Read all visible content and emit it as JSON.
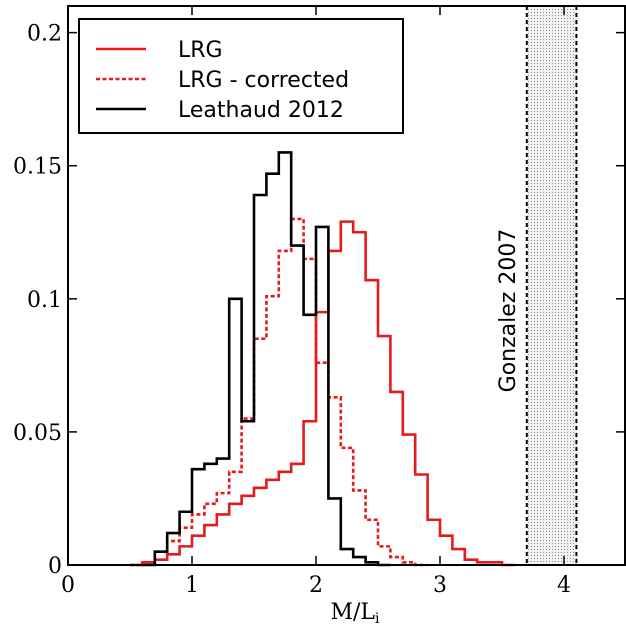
{
  "chart_data": {
    "type": "histogram",
    "xlabel": "M/L",
    "xlabel_sub": "i",
    "ylabel": "",
    "xlim": [
      0,
      4.5
    ],
    "ylim": [
      0,
      0.21
    ],
    "x_ticks": [
      {
        "v": 0,
        "label": "0"
      },
      {
        "v": 1,
        "label": "1"
      },
      {
        "v": 2,
        "label": "2"
      },
      {
        "v": 3,
        "label": "3"
      },
      {
        "v": 4,
        "label": "4"
      }
    ],
    "y_ticks": [
      {
        "v": 0,
        "label": "0"
      },
      {
        "v": 0.05,
        "label": "0.05"
      },
      {
        "v": 0.1,
        "label": "0.1"
      },
      {
        "v": 0.15,
        "label": "0.15"
      },
      {
        "v": 0.2,
        "label": "0.2"
      }
    ],
    "series": [
      {
        "name": "LRG",
        "color": "#e41a1c",
        "dash": "solid",
        "steps": [
          [
            0.5,
            0
          ],
          [
            0.6,
            0.001
          ],
          [
            0.7,
            0.002
          ],
          [
            0.8,
            0.004
          ],
          [
            0.9,
            0.007
          ],
          [
            1.0,
            0.011
          ],
          [
            1.1,
            0.015
          ],
          [
            1.2,
            0.019
          ],
          [
            1.3,
            0.023
          ],
          [
            1.4,
            0.026
          ],
          [
            1.5,
            0.029
          ],
          [
            1.6,
            0.032
          ],
          [
            1.7,
            0.035
          ],
          [
            1.8,
            0.038
          ],
          [
            1.9,
            0.054
          ],
          [
            2.0,
            0.095
          ],
          [
            2.1,
            0.118
          ],
          [
            2.2,
            0.129
          ],
          [
            2.3,
            0.125
          ],
          [
            2.4,
            0.107
          ],
          [
            2.5,
            0.086
          ],
          [
            2.6,
            0.065
          ],
          [
            2.7,
            0.049
          ],
          [
            2.8,
            0.034
          ],
          [
            2.9,
            0.017
          ],
          [
            3.0,
            0.011
          ],
          [
            3.1,
            0.006
          ],
          [
            3.2,
            0.002
          ],
          [
            3.3,
            0.001
          ],
          [
            3.4,
            0.001
          ],
          [
            3.5,
            0
          ]
        ]
      },
      {
        "name": "LRG - corrected",
        "color": "#e41a1c",
        "dash": "dashed",
        "steps": [
          [
            0.5,
            0
          ],
          [
            0.6,
            0.001
          ],
          [
            0.7,
            0.005
          ],
          [
            0.8,
            0.009
          ],
          [
            0.9,
            0.014
          ],
          [
            1.0,
            0.019
          ],
          [
            1.1,
            0.023
          ],
          [
            1.2,
            0.027
          ],
          [
            1.3,
            0.035
          ],
          [
            1.4,
            0.055
          ],
          [
            1.5,
            0.085
          ],
          [
            1.6,
            0.101
          ],
          [
            1.7,
            0.118
          ],
          [
            1.8,
            0.13
          ],
          [
            1.9,
            0.115
          ],
          [
            2.0,
            0.076
          ],
          [
            2.1,
            0.063
          ],
          [
            2.2,
            0.044
          ],
          [
            2.3,
            0.028
          ],
          [
            2.4,
            0.017
          ],
          [
            2.5,
            0.007
          ],
          [
            2.6,
            0.003
          ],
          [
            2.7,
            0.001
          ],
          [
            2.8,
            0
          ]
        ]
      },
      {
        "name": "Leathaud 2012",
        "color": "#000000",
        "dash": "solid",
        "steps": [
          [
            0.6,
            0
          ],
          [
            0.7,
            0.005
          ],
          [
            0.8,
            0.012
          ],
          [
            0.9,
            0.02
          ],
          [
            1.0,
            0.036
          ],
          [
            1.1,
            0.038
          ],
          [
            1.2,
            0.04
          ],
          [
            1.3,
            0.1
          ],
          [
            1.4,
            0.054
          ],
          [
            1.5,
            0.139
          ],
          [
            1.6,
            0.147
          ],
          [
            1.7,
            0.155
          ],
          [
            1.8,
            0.12
          ],
          [
            1.9,
            0.094
          ],
          [
            2.0,
            0.127
          ],
          [
            2.1,
            0.025
          ],
          [
            2.2,
            0.006
          ],
          [
            2.3,
            0.003
          ],
          [
            2.4,
            0.001
          ],
          [
            2.5,
            0
          ]
        ]
      }
    ],
    "band": {
      "label": "Gonzalez 2007",
      "x_range": [
        3.7,
        4.1
      ]
    },
    "legend": {
      "placement": "top-left",
      "entries": [
        "LRG",
        "LRG - corrected",
        "Leathaud 2012"
      ]
    }
  }
}
